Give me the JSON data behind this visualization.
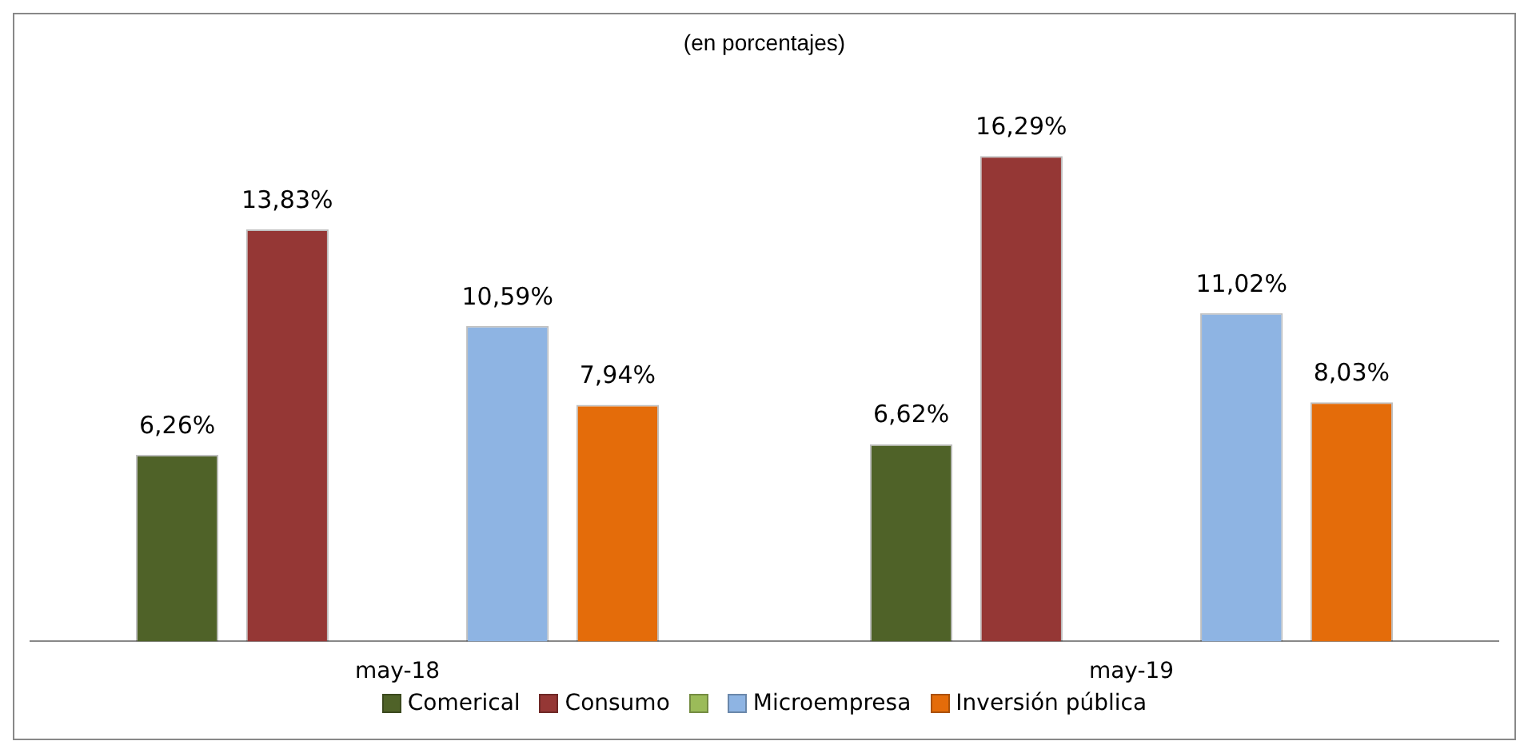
{
  "chart_data": {
    "type": "bar",
    "title": "(en porcentajes)",
    "categories": [
      "may-18",
      "may-19"
    ],
    "legend": "bottom",
    "grid": false,
    "series": [
      {
        "name": "Comerical",
        "color": "#4f6228",
        "values": [
          6.26,
          6.62
        ],
        "value_labels": [
          "6,26%",
          "6,62%"
        ]
      },
      {
        "name": "Consumo",
        "color": "#953735",
        "values": [
          13.83,
          16.29
        ],
        "value_labels": [
          "13,83%",
          "16,29%"
        ]
      },
      {
        "color": "#9bbb59",
        "values": [
          null,
          null
        ]
      },
      {
        "name": "Microempresa",
        "color": "#8eb4e3",
        "values": [
          10.59,
          11.02
        ],
        "value_labels": [
          "10,59%",
          "11,02%"
        ]
      },
      {
        "name": "Inversión pública",
        "color": "#e46c0a",
        "values": [
          7.94,
          8.03
        ],
        "value_labels": [
          "7,94%",
          "8,03%"
        ]
      }
    ]
  }
}
